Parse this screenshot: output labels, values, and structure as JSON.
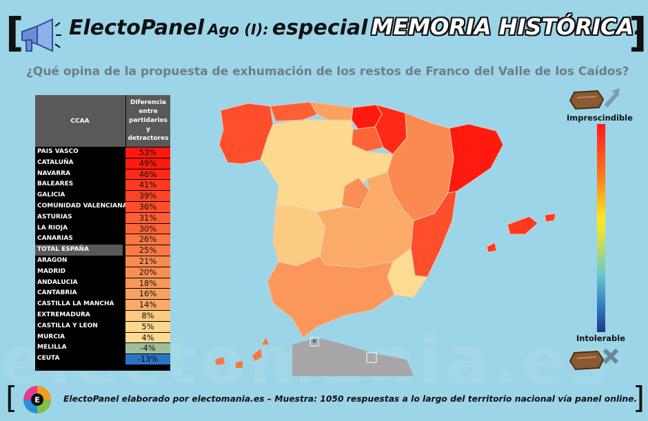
{
  "header": {
    "brand": "ElectoPanel",
    "edition": "Ago (I):",
    "especial": "especial",
    "topic": "MEMORIA HISTÓRICA",
    "topic_period": "."
  },
  "question": "¿Qué opina de la propuesta de exhumación de los restos de Franco del Valle de los Caídos?",
  "table": {
    "col_region": "CCAA",
    "col_diff_lines": [
      "Diferencia",
      "entre",
      "partidarios",
      "y",
      "detractores"
    ],
    "rows": [
      {
        "name": "PAIS VASCO",
        "value": "53%",
        "color": "#ff1a0f"
      },
      {
        "name": "CATALUÑA",
        "value": "49%",
        "color": "#ff1a0f"
      },
      {
        "name": "NAVARRA",
        "value": "46%",
        "color": "#ff2a15"
      },
      {
        "name": "BALEARES",
        "value": "41%",
        "color": "#ff3a1f"
      },
      {
        "name": "GALICIA",
        "value": "39%",
        "color": "#ff4424"
      },
      {
        "name": "COMUNIDAD VALENCIANA",
        "value": "36%",
        "color": "#fe4e2c"
      },
      {
        "name": "ASTURIAS",
        "value": "31%",
        "color": "#fd5f35"
      },
      {
        "name": "LA RIOJA",
        "value": "30%",
        "color": "#fd6438"
      },
      {
        "name": "CANARIAS",
        "value": "26%",
        "color": "#fc7543"
      },
      {
        "name": "TOTAL ESPAÑA",
        "value": "25%",
        "color": "#fc7a46",
        "total": true
      },
      {
        "name": "ARAGON",
        "value": "21%",
        "color": "#fb8a50"
      },
      {
        "name": "MADRID",
        "value": "20%",
        "color": "#fb8e53"
      },
      {
        "name": "ANDALUCIA",
        "value": "18%",
        "color": "#fb975a"
      },
      {
        "name": "CANTABRIA",
        "value": "16%",
        "color": "#fba160"
      },
      {
        "name": "CASTILLA LA MANCHA",
        "value": "14%",
        "color": "#fbaa67"
      },
      {
        "name": "EXTREMADURA",
        "value": "8%",
        "color": "#fccb82"
      },
      {
        "name": "CASTILLA Y LEON",
        "value": "5%",
        "color": "#fdd98f"
      },
      {
        "name": "MURCIA",
        "value": "4%",
        "color": "#fddc92"
      },
      {
        "name": "MELILLA",
        "value": "-4%",
        "color": "#9fbf9a"
      },
      {
        "name": "CEUTA",
        "value": "-13%",
        "color": "#2a74c4"
      }
    ]
  },
  "legend": {
    "top_label": "Imprescindible",
    "bottom_label": "Intolerable"
  },
  "watermark": "electomania.es",
  "footer": "ElectoPanel elaborado por electomania.es – Muestra: 1050 respuestas a lo largo del territorio nacional vía panel online.",
  "icons": {
    "megaphone": "megaphone-icon",
    "coffin_up": "coffin-arrow-up-icon",
    "coffin_down": "coffin-x-icon",
    "logo": "electomania-logo"
  }
}
